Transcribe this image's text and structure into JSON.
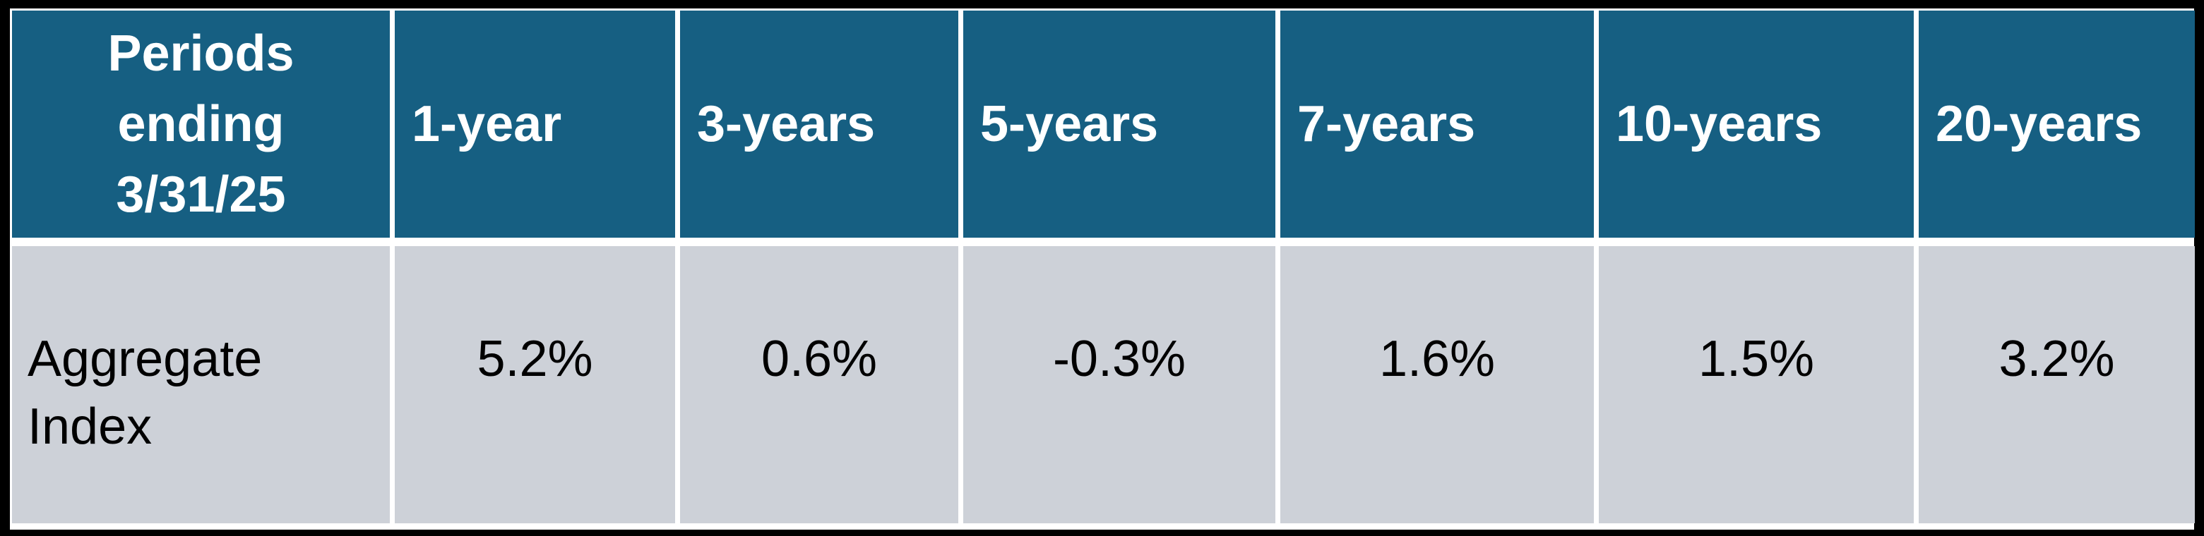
{
  "table": {
    "corner_header": "Periods\nending\n3/31/25",
    "column_headers": [
      "1-year",
      "3-years",
      "5-years",
      "7-years",
      "10-years",
      "20-years"
    ],
    "rows": [
      {
        "label": "Aggregate\nIndex",
        "values": [
          "5.2%",
          "0.6%",
          "-0.3%",
          "1.6%",
          "1.5%",
          "3.2%"
        ]
      }
    ]
  },
  "colors": {
    "header_bg": "#165F82",
    "row_bg": "#CDD1D8",
    "header_text": "#FFFFFF",
    "row_text": "#000000",
    "frame_border": "#000000",
    "separator": "#FFFFFF"
  },
  "chart_data": {
    "type": "table",
    "title": "Periods ending 3/31/25",
    "categories": [
      "1-year",
      "3-years",
      "5-years",
      "7-years",
      "10-years",
      "20-years"
    ],
    "series": [
      {
        "name": "Aggregate Index",
        "values": [
          5.2,
          0.6,
          -0.3,
          1.6,
          1.5,
          3.2
        ]
      }
    ],
    "units": "percent",
    "layout": "single header row (dark teal), single data row (light gray), black outer frame, white cell separators"
  }
}
